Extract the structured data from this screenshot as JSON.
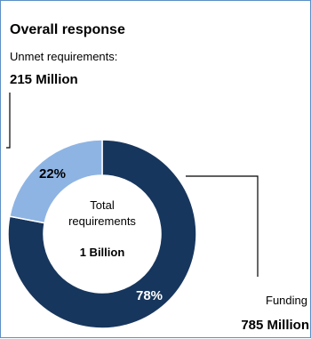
{
  "chart_data": {
    "type": "pie",
    "title": "Overall response",
    "categories": [
      "Funding",
      "Unmet requirements"
    ],
    "values": [
      78,
      22
    ],
    "value_labels": [
      "78%",
      "22%"
    ],
    "colors": [
      "#17365d",
      "#8eb4e3"
    ],
    "center": {
      "line1": "Total",
      "line2": "requirements",
      "line3": "1 Billion"
    },
    "annotations": {
      "unmet_label": "Unmet requirements:",
      "unmet_value": "215 Million",
      "funding_label": "Funding",
      "funding_value": "785 Million"
    },
    "legend": "none"
  }
}
